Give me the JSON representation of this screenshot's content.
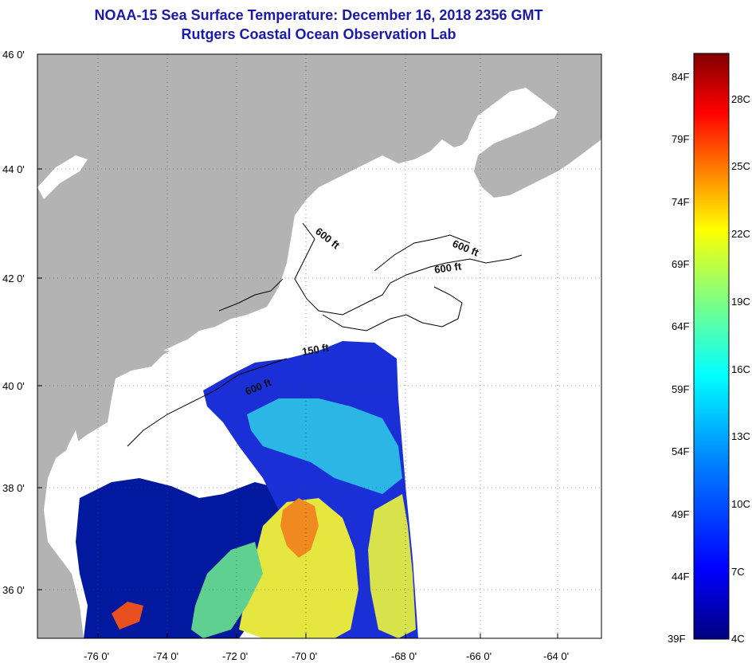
{
  "header": {
    "title": "NOAA-15 Sea Surface Temperature:  December 16, 2018 2356 GMT",
    "subtitle": "Rutgers Coastal Ocean Observation Lab"
  },
  "map": {
    "lat_labels": [
      "46 0'",
      "44 0'",
      "42 0'",
      "40 0'",
      "38 0'",
      "36 0'"
    ],
    "lon_labels": [
      "-76 0'",
      "-74 0'",
      "-72 0'",
      "-70 0'",
      "-68 0'",
      "-66 0'",
      "-64 0'"
    ],
    "contour_labels": [
      "600 ft",
      "600 ft",
      "600 ft",
      "150 ft",
      "600 ft"
    ],
    "colors": {
      "land": "#b3b3b3",
      "frame": "#000000",
      "title": "#1a1aa6"
    }
  },
  "colorbar": {
    "f_labels": [
      "84F",
      "79F",
      "74F",
      "69F",
      "64F",
      "59F",
      "54F",
      "49F",
      "44F",
      "39F"
    ],
    "c_labels": [
      "28C",
      "25C",
      "22C",
      "19C",
      "16C",
      "13C",
      "10C",
      "7C",
      "4C"
    ],
    "stops": [
      "#800000",
      "#ff0000",
      "#ff8000",
      "#ffff00",
      "#80ff80",
      "#00ffff",
      "#0080ff",
      "#0000ff",
      "#000080"
    ]
  }
}
